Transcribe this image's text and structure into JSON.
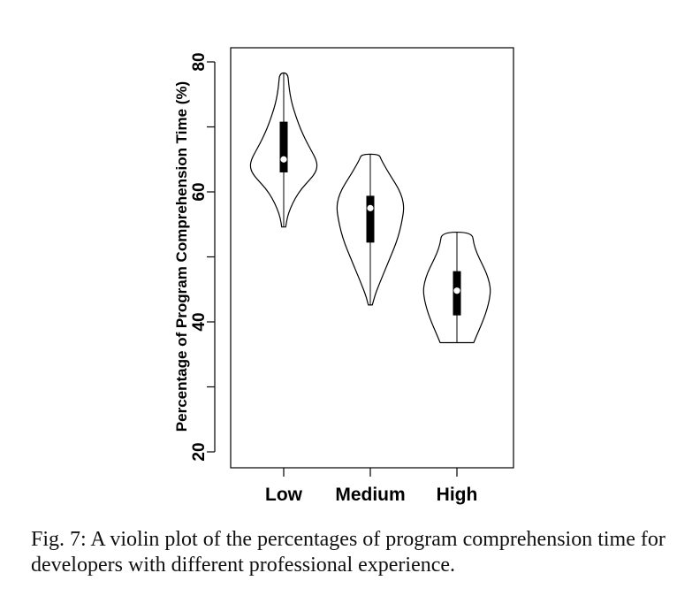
{
  "chart_data": {
    "type": "violin",
    "ylabel": "Percentage of Program Comprehension Time (%)",
    "xlabel": "",
    "ylim": [
      18,
      83
    ],
    "yticks": [
      20,
      40,
      60,
      80
    ],
    "yticks_minor": [
      20,
      30,
      40,
      50,
      60,
      70,
      80
    ],
    "categories": [
      "Low",
      "Medium",
      "High"
    ],
    "violins": [
      {
        "name": "Low",
        "min": 54.6,
        "q1": 63.0,
        "median": 65.0,
        "q3": 70.8,
        "max": 78.3,
        "density": [
          [
            54.6,
            0.06
          ],
          [
            56.0,
            0.1
          ],
          [
            57.5,
            0.2
          ],
          [
            59.0,
            0.34
          ],
          [
            60.5,
            0.53
          ],
          [
            62.0,
            0.8
          ],
          [
            63.0,
            0.95
          ],
          [
            64.0,
            1.0
          ],
          [
            65.0,
            0.96
          ],
          [
            66.0,
            0.86
          ],
          [
            67.5,
            0.7
          ],
          [
            69.0,
            0.56
          ],
          [
            70.5,
            0.44
          ],
          [
            72.0,
            0.34
          ],
          [
            73.5,
            0.25
          ],
          [
            75.0,
            0.19
          ],
          [
            76.5,
            0.15
          ],
          [
            78.3,
            0.12
          ]
        ]
      },
      {
        "name": "Medium",
        "min": 42.6,
        "q1": 52.2,
        "median": 57.5,
        "q3": 59.4,
        "max": 65.8,
        "density": [
          [
            42.6,
            0.06
          ],
          [
            44.0,
            0.13
          ],
          [
            46.0,
            0.28
          ],
          [
            48.0,
            0.44
          ],
          [
            50.0,
            0.6
          ],
          [
            52.0,
            0.76
          ],
          [
            54.0,
            0.88
          ],
          [
            56.0,
            0.96
          ],
          [
            57.5,
            1.0
          ],
          [
            59.0,
            0.96
          ],
          [
            60.5,
            0.84
          ],
          [
            62.0,
            0.66
          ],
          [
            63.5,
            0.48
          ],
          [
            65.0,
            0.32
          ],
          [
            65.8,
            0.26
          ]
        ]
      },
      {
        "name": "High",
        "min": 36.8,
        "q1": 41.0,
        "median": 44.8,
        "q3": 47.8,
        "max": 53.8,
        "density": [
          [
            36.8,
            0.5
          ],
          [
            37.8,
            0.58
          ],
          [
            39.0,
            0.68
          ],
          [
            40.5,
            0.8
          ],
          [
            42.0,
            0.9
          ],
          [
            43.5,
            0.97
          ],
          [
            44.8,
            1.0
          ],
          [
            46.0,
            0.97
          ],
          [
            47.5,
            0.88
          ],
          [
            49.0,
            0.74
          ],
          [
            50.5,
            0.6
          ],
          [
            52.0,
            0.5
          ],
          [
            53.8,
            0.45
          ]
        ]
      }
    ],
    "grid": false,
    "legend": "none"
  },
  "caption": "Fig. 7: A violin plot of the percentages of program comprehension time for developers with different professional experience."
}
